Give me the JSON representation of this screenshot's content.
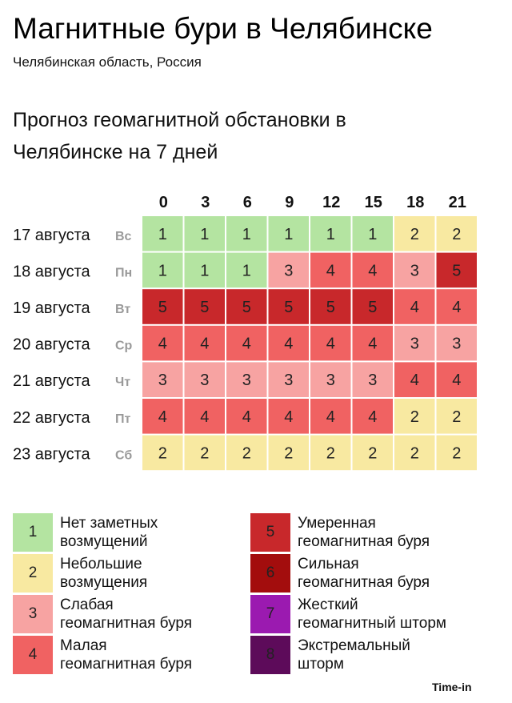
{
  "header": {
    "title": "Магнитные бури в Челябинске",
    "subtitle": "Челябинская область, Россия",
    "forecast_title": "Прогноз геомагнитной обстановки в Челябинске на 7 дней"
  },
  "chart_data": {
    "type": "heatmap",
    "x": [
      "0",
      "3",
      "6",
      "9",
      "12",
      "15",
      "18",
      "21"
    ],
    "rows": [
      {
        "date": "17 августа",
        "weekday": "Вс",
        "values": [
          1,
          1,
          1,
          1,
          1,
          1,
          2,
          2
        ]
      },
      {
        "date": "18 августа",
        "weekday": "Пн",
        "values": [
          1,
          1,
          1,
          3,
          4,
          4,
          3,
          5
        ]
      },
      {
        "date": "19 августа",
        "weekday": "Вт",
        "values": [
          5,
          5,
          5,
          5,
          5,
          5,
          4,
          4
        ]
      },
      {
        "date": "20 августа",
        "weekday": "Ср",
        "values": [
          4,
          4,
          4,
          4,
          4,
          4,
          3,
          3
        ]
      },
      {
        "date": "21 августа",
        "weekday": "Чт",
        "values": [
          3,
          3,
          3,
          3,
          3,
          3,
          4,
          4
        ]
      },
      {
        "date": "22 августа",
        "weekday": "Пт",
        "values": [
          4,
          4,
          4,
          4,
          4,
          4,
          2,
          2
        ]
      },
      {
        "date": "23 августа",
        "weekday": "Сб",
        "values": [
          2,
          2,
          2,
          2,
          2,
          2,
          2,
          2
        ]
      }
    ],
    "level_colors": {
      "1": "#b4e4a1",
      "2": "#f8e9a1",
      "3": "#f7a3a2",
      "4": "#f06262",
      "5": "#c8282b",
      "6": "#a30d0d",
      "7": "#9b1ab0",
      "8": "#5d0b5a"
    }
  },
  "legend": [
    {
      "level": "1",
      "label": "Нет заметных\nвозмущений",
      "color": "#b4e4a1"
    },
    {
      "level": "2",
      "label": "Небольшие\nвозмущения",
      "color": "#f8e9a1"
    },
    {
      "level": "3",
      "label": "Слабая\nгеомагнитная буря",
      "color": "#f7a3a2"
    },
    {
      "level": "4",
      "label": "Малая\nгеомагнитная буря",
      "color": "#f06262"
    },
    {
      "level": "5",
      "label": "Умеренная\nгеомагнитная буря",
      "color": "#c8282b"
    },
    {
      "level": "6",
      "label": "Сильная\nгеомагнитная буря",
      "color": "#a30d0d"
    },
    {
      "level": "7",
      "label": "Жесткий\nгеомагнитный шторм",
      "color": "#9b1ab0"
    },
    {
      "level": "8",
      "label": "Экстремальный\nшторм",
      "color": "#5d0b5a"
    }
  ],
  "footer": {
    "brand": "Time-in"
  }
}
